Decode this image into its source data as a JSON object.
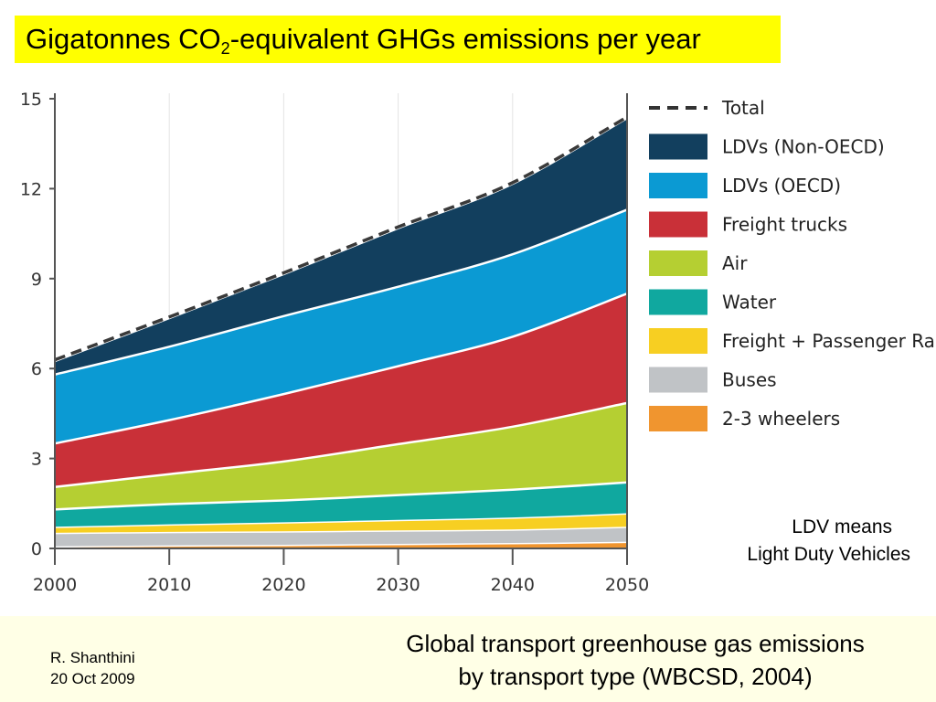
{
  "title": {
    "pre": "Gigatonnes CO",
    "sub": "2",
    "post": "-equivalent GHGs emissions per year"
  },
  "note": {
    "line1": "LDV means",
    "line2": "Light Duty Vehicles"
  },
  "footer": {
    "author": "R. Shanthini",
    "date": "20 Oct 2009",
    "caption_line1": "Global transport greenhouse gas emissions",
    "caption_line2": "by transport type (WBCSD, 2004)"
  },
  "colors": {
    "title_bg": "#ffff00",
    "footer_bg": "#ffffe6"
  },
  "chart_data": {
    "type": "area",
    "stacked": true,
    "x": [
      2000,
      2010,
      2020,
      2030,
      2040,
      2050
    ],
    "xlim": [
      2000,
      2050
    ],
    "ylim": [
      0,
      15
    ],
    "xticks": [
      "2000",
      "2010",
      "2020",
      "2030",
      "2040",
      "2050"
    ],
    "yticks": [
      "0",
      "3",
      "6",
      "9",
      "12",
      "15"
    ],
    "legend_position": "right",
    "series": [
      {
        "name": "2-3 wheelers",
        "color": "#f0952f",
        "values": [
          0.05,
          0.08,
          0.1,
          0.13,
          0.16,
          0.2
        ]
      },
      {
        "name": "Buses",
        "color": "#c0c3c6",
        "values": [
          0.45,
          0.45,
          0.45,
          0.45,
          0.45,
          0.5
        ]
      },
      {
        "name": "Freight + Passenger Rail",
        "color": "#f7cf22",
        "values": [
          0.2,
          0.25,
          0.3,
          0.35,
          0.4,
          0.45
        ]
      },
      {
        "name": "Water",
        "color": "#10a89f",
        "values": [
          0.6,
          0.7,
          0.75,
          0.85,
          0.95,
          1.05
        ]
      },
      {
        "name": "Air",
        "color": "#b5cf32",
        "values": [
          0.75,
          1.0,
          1.3,
          1.7,
          2.1,
          2.65
        ]
      },
      {
        "name": "Freight trucks",
        "color": "#c93038",
        "values": [
          1.45,
          1.8,
          2.25,
          2.6,
          3.0,
          3.65
        ]
      },
      {
        "name": "LDVs (OECD)",
        "color": "#0b9ad3",
        "values": [
          2.3,
          2.45,
          2.6,
          2.65,
          2.75,
          2.8
        ]
      },
      {
        "name": "LDVs (Non-OECD)",
        "color": "#123f5e",
        "values": [
          0.4,
          0.9,
          1.35,
          1.9,
          2.3,
          3.0
        ]
      }
    ],
    "total": {
      "name": "Total",
      "values": [
        6.2,
        7.63,
        9.1,
        10.63,
        12.11,
        14.3
      ]
    }
  }
}
